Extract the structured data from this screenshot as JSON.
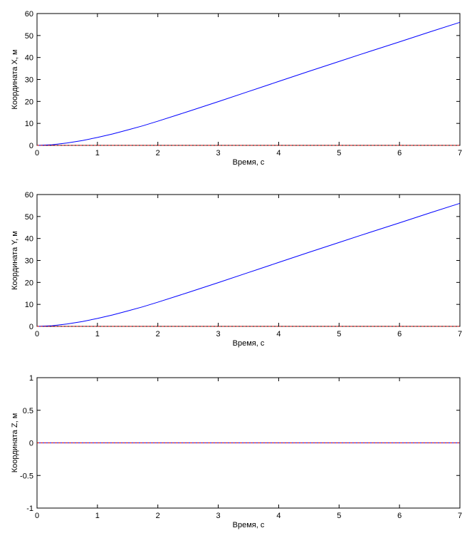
{
  "chart_data": [
    {
      "type": "line",
      "xlabel": "Время, с",
      "ylabel": "Координата X, м",
      "xlim": [
        0,
        7
      ],
      "ylim": [
        0,
        60
      ],
      "xticks": [
        0,
        1,
        2,
        3,
        4,
        5,
        6,
        7
      ],
      "yticks": [
        0,
        10,
        20,
        30,
        40,
        50,
        60
      ],
      "grid": false,
      "series": [
        {
          "color": "#0000ff",
          "x": [
            0,
            0.25,
            0.5,
            0.75,
            1,
            1.25,
            1.5,
            1.75,
            2,
            2.5,
            3,
            3.5,
            4,
            4.5,
            5,
            5.5,
            6,
            6.5,
            7
          ],
          "values": [
            0,
            0.3,
            1.1,
            2.2,
            3.6,
            5.2,
            7.0,
            8.9,
            11.0,
            15.4,
            19.9,
            24.5,
            29.1,
            33.7,
            38.2,
            42.7,
            47.1,
            51.6,
            56.0
          ]
        },
        {
          "color": "#cc0000",
          "dash": true,
          "x": [
            0,
            7
          ],
          "values": [
            0,
            0
          ]
        }
      ]
    },
    {
      "type": "line",
      "xlabel": "Время, с",
      "ylabel": "Координата Y, м",
      "xlim": [
        0,
        7
      ],
      "ylim": [
        0,
        60
      ],
      "xticks": [
        0,
        1,
        2,
        3,
        4,
        5,
        6,
        7
      ],
      "yticks": [
        0,
        10,
        20,
        30,
        40,
        50,
        60
      ],
      "grid": false,
      "series": [
        {
          "color": "#0000ff",
          "x": [
            0,
            0.25,
            0.5,
            0.75,
            1,
            1.25,
            1.5,
            1.75,
            2,
            2.5,
            3,
            3.5,
            4,
            4.5,
            5,
            5.5,
            6,
            6.5,
            7
          ],
          "values": [
            0,
            0.3,
            1.1,
            2.2,
            3.6,
            5.2,
            7.0,
            8.9,
            11.0,
            15.4,
            19.9,
            24.5,
            29.1,
            33.7,
            38.2,
            42.7,
            47.1,
            51.6,
            56.0
          ]
        },
        {
          "color": "#cc0000",
          "dash": true,
          "x": [
            0,
            7
          ],
          "values": [
            0,
            0
          ]
        }
      ]
    },
    {
      "type": "line",
      "xlabel": "Время, с",
      "ylabel": "Координата Z, м",
      "xlim": [
        0,
        7
      ],
      "ylim": [
        -1,
        1
      ],
      "xticks": [
        0,
        1,
        2,
        3,
        4,
        5,
        6,
        7
      ],
      "yticks": [
        -1,
        -0.5,
        0,
        0.5,
        1
      ],
      "grid": false,
      "series": [
        {
          "color": "#0000ff",
          "x": [
            0,
            7
          ],
          "values": [
            0,
            0
          ]
        },
        {
          "color": "#cc0000",
          "dash": true,
          "x": [
            0,
            7
          ],
          "values": [
            0,
            0
          ]
        }
      ]
    }
  ]
}
